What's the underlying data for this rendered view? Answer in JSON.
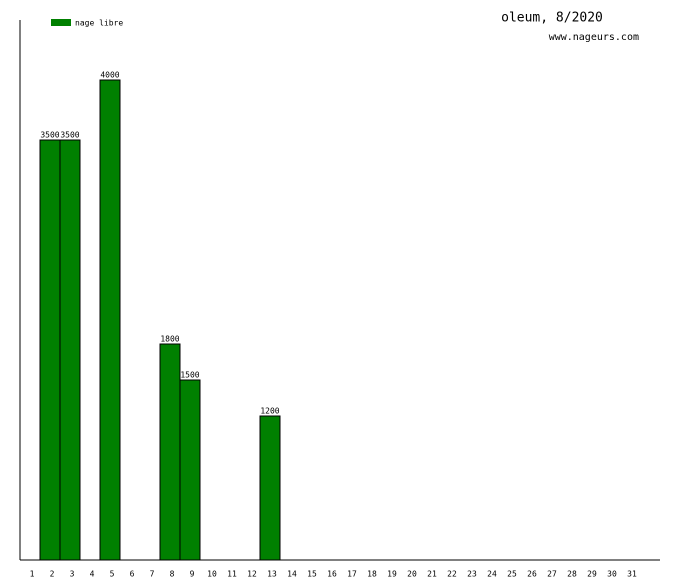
{
  "chart_data": {
    "type": "bar",
    "title": "oleum, 8/2020",
    "subtitle": "www.nageurs.com",
    "categories": [
      "1",
      "2",
      "3",
      "4",
      "5",
      "6",
      "7",
      "8",
      "9",
      "10",
      "11",
      "12",
      "13",
      "14",
      "15",
      "16",
      "17",
      "18",
      "19",
      "20",
      "21",
      "22",
      "23",
      "24",
      "25",
      "26",
      "27",
      "28",
      "29",
      "30",
      "31"
    ],
    "series": [
      {
        "name": "nage libre",
        "color": "#008000",
        "values": [
          null,
          3500,
          3500,
          null,
          4000,
          null,
          null,
          1800,
          1500,
          null,
          null,
          null,
          1200,
          null,
          null,
          null,
          null,
          null,
          null,
          null,
          null,
          null,
          null,
          null,
          null,
          null,
          null,
          null,
          null,
          null,
          null
        ]
      }
    ],
    "ylim": [
      0,
      4500
    ]
  }
}
